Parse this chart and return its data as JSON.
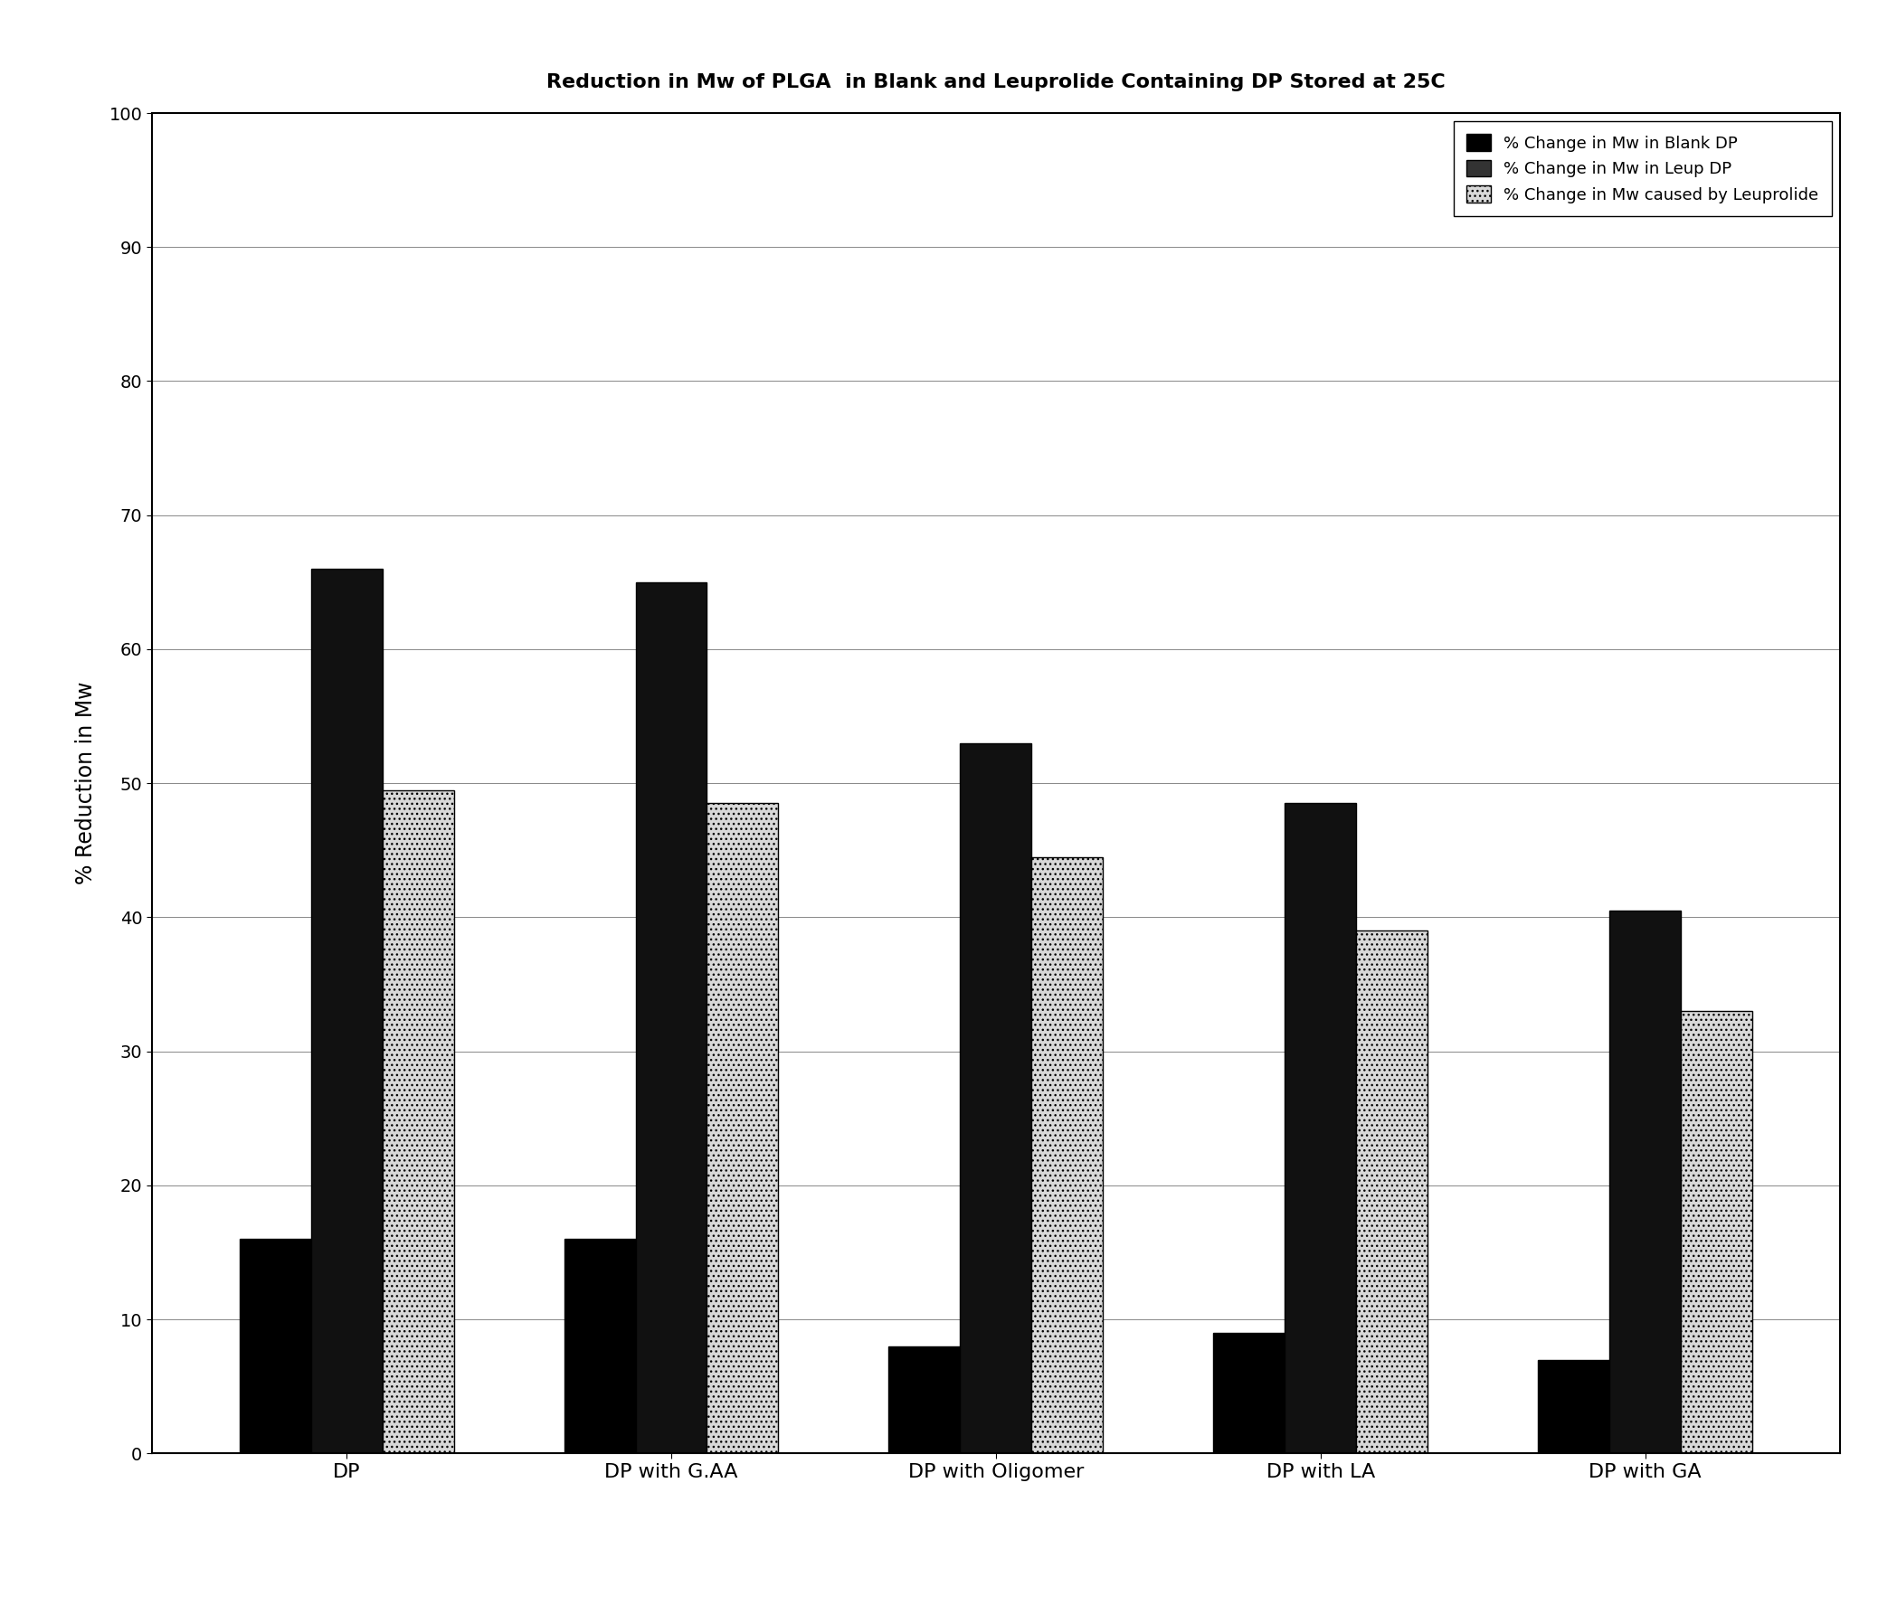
{
  "title": "Reduction in Mw of PLGA  in Blank and Leuprolide Containing DP Stored at 25C",
  "ylabel": "% Reduction in Mw",
  "categories": [
    "DP",
    "DP with G.AA",
    "DP with Oligomer",
    "DP with LA",
    "DP with GA"
  ],
  "blank_dp": [
    16.0,
    16.0,
    8.0,
    9.0,
    7.0
  ],
  "leup_dp": [
    66.0,
    65.0,
    53.0,
    48.5,
    40.5
  ],
  "leup_caused": [
    49.5,
    48.5,
    44.5,
    39.0,
    33.0
  ],
  "ylim": [
    0,
    100
  ],
  "yticks": [
    0,
    10,
    20,
    30,
    40,
    50,
    60,
    70,
    80,
    90,
    100
  ],
  "legend_labels": [
    "% Change in Mw in Blank DP",
    "% Change in Mw in Leup DP",
    "% Change in Mw caused by Leuprolide"
  ],
  "bar_width": 0.22,
  "background_color": "#ffffff",
  "title_fontsize": 16,
  "label_fontsize": 15,
  "tick_fontsize": 14,
  "legend_fontsize": 13
}
